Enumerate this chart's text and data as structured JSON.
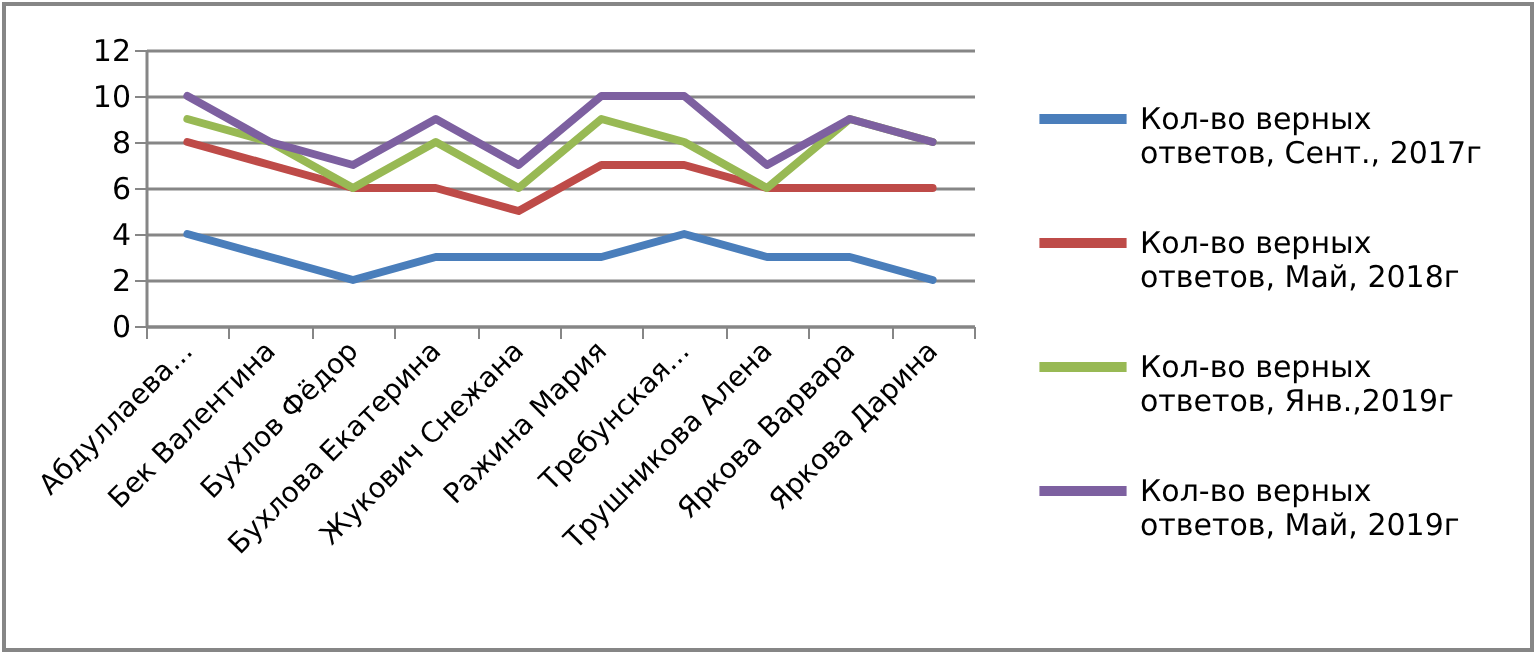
{
  "chart_data": {
    "type": "line",
    "categories": [
      "Абдуллаева...",
      "Бек Валентина",
      "Бухлов Фёдор",
      "Бухлова Екатерина",
      "Жукович Снежана",
      "Ражина Мария",
      "Требунская...",
      "Трушникова Алена",
      "Яркова Варвара",
      "Яркова Дарина"
    ],
    "series": [
      {
        "name": "Кол-во верных ответов, Сент., 2017г",
        "color": "#4a7ebb",
        "values": [
          4,
          3,
          2,
          3,
          3,
          3,
          4,
          3,
          3,
          2
        ]
      },
      {
        "name": "Кол-во верных ответов, Май, 2018г",
        "color": "#be4b48",
        "values": [
          8,
          7,
          6,
          6,
          5,
          7,
          7,
          6,
          6,
          6
        ]
      },
      {
        "name": "Кол-во верных ответов, Янв.,2019г",
        "color": "#98b954",
        "values": [
          9,
          8,
          6,
          8,
          6,
          9,
          8,
          6,
          9,
          8
        ]
      },
      {
        "name": "Кол-во верных ответов, Май, 2019г",
        "color": "#7d60a0",
        "values": [
          10,
          8,
          7,
          9,
          7,
          10,
          10,
          7,
          9,
          8
        ]
      }
    ],
    "ylim": [
      0,
      12
    ],
    "yticks": [
      0,
      2,
      4,
      6,
      8,
      10,
      12
    ],
    "grid": "y",
    "legend": "right",
    "marker": "none",
    "line_style": "solid"
  }
}
